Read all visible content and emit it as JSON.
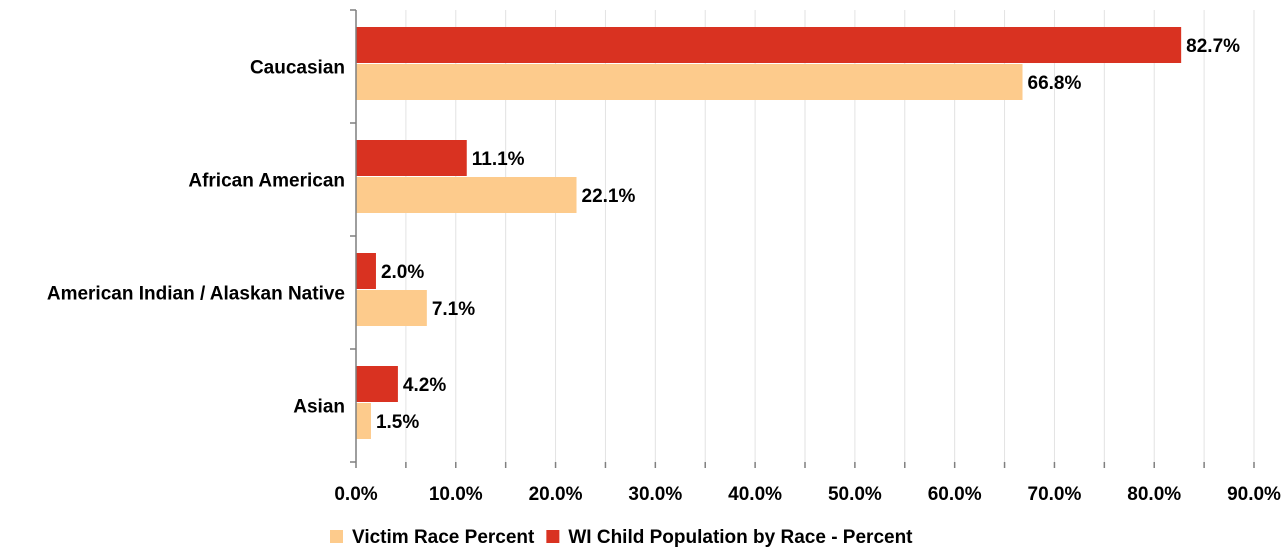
{
  "chart_data": {
    "type": "bar",
    "orientation": "horizontal",
    "categories": [
      "Caucasian",
      "African American",
      "American Indian / Alaskan Native",
      "Asian"
    ],
    "series": [
      {
        "name": "WI Child Population by Race - Percent",
        "color": "#d93221",
        "values": [
          82.7,
          11.1,
          2.0,
          4.2
        ],
        "labels": [
          "82.7%",
          "11.1%",
          "2.0%",
          "4.2%"
        ]
      },
      {
        "name": "Victim Race Percent",
        "color": "#fdcb8c",
        "values": [
          66.8,
          22.1,
          7.1,
          1.5
        ],
        "labels": [
          "66.8%",
          "22.1%",
          "7.1%",
          "1.5%"
        ]
      }
    ],
    "xlim": [
      0,
      90
    ],
    "xticks": [
      0,
      10,
      20,
      30,
      40,
      50,
      60,
      70,
      80,
      90
    ],
    "xtick_labels": [
      "0.0%",
      "10.0%",
      "20.0%",
      "30.0%",
      "40.0%",
      "50.0%",
      "60.0%",
      "70.0%",
      "80.0%",
      "90.0%"
    ],
    "grid": true,
    "legend": {
      "placement": "bottom",
      "entries": [
        "Victim Race Percent",
        "WI Child Population by Race - Percent"
      ]
    }
  }
}
